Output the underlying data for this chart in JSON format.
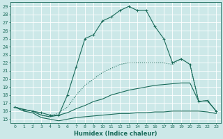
{
  "xlabel": "Humidex (Indice chaleur)",
  "bg_color": "#cce8e8",
  "grid_color": "#ffffff",
  "line_color": "#1a6b5a",
  "xlim": [
    -0.5,
    23.5
  ],
  "ylim": [
    14.5,
    29.5
  ],
  "xticks": [
    0,
    1,
    2,
    3,
    4,
    5,
    6,
    7,
    8,
    9,
    10,
    11,
    12,
    13,
    14,
    15,
    16,
    17,
    18,
    19,
    20,
    21,
    22,
    23
  ],
  "yticks": [
    15,
    16,
    17,
    18,
    19,
    20,
    21,
    22,
    23,
    24,
    25,
    26,
    27,
    28,
    29
  ],
  "line_main_x": [
    0,
    1,
    2,
    3,
    4,
    5,
    6,
    7,
    8,
    9,
    10,
    11,
    12,
    13,
    14,
    15,
    16,
    17,
    18,
    19,
    20,
    21,
    22,
    23
  ],
  "line_main_y": [
    16.5,
    16.2,
    16.0,
    15.8,
    15.5,
    15.5,
    18.0,
    21.5,
    25.0,
    25.5,
    27.2,
    27.7,
    28.5,
    29.0,
    28.5,
    28.5,
    26.5,
    25.0,
    22.0,
    22.5,
    21.8,
    17.2,
    17.3,
    16.0
  ],
  "line_med_x": [
    0,
    1,
    2,
    3,
    4,
    5,
    6,
    7,
    8,
    9,
    10,
    11,
    12,
    13,
    14,
    15,
    16,
    17,
    18,
    19,
    20,
    21,
    22,
    23
  ],
  "line_med_y": [
    16.5,
    16.2,
    16.0,
    15.5,
    15.3,
    15.8,
    16.5,
    18.0,
    19.2,
    20.0,
    20.8,
    21.3,
    21.8,
    22.0,
    22.0,
    22.0,
    22.0,
    22.0,
    21.8,
    22.5,
    21.8,
    17.2,
    17.3,
    16.0
  ],
  "line_hi_x": [
    0,
    1,
    2,
    3,
    4,
    5,
    6,
    7,
    8,
    9,
    10,
    11,
    12,
    13,
    14,
    15,
    16,
    17,
    18,
    19,
    20,
    21,
    22,
    23
  ],
  "line_hi_y": [
    16.5,
    16.2,
    16.0,
    15.5,
    15.3,
    15.5,
    15.8,
    16.3,
    16.7,
    17.2,
    17.5,
    18.0,
    18.3,
    18.6,
    18.8,
    19.0,
    19.2,
    19.3,
    19.4,
    19.5,
    19.5,
    17.2,
    17.3,
    16.0
  ],
  "line_lo_x": [
    0,
    1,
    2,
    3,
    4,
    5,
    6,
    7,
    8,
    9,
    10,
    11,
    12,
    13,
    14,
    15,
    16,
    17,
    18,
    19,
    20,
    21,
    22,
    23
  ],
  "line_lo_y": [
    16.5,
    16.0,
    15.8,
    15.2,
    15.0,
    14.8,
    15.0,
    15.2,
    15.3,
    15.4,
    15.5,
    15.6,
    15.7,
    15.7,
    15.8,
    15.8,
    15.9,
    15.9,
    16.0,
    16.0,
    16.0,
    16.0,
    15.9,
    15.7
  ]
}
